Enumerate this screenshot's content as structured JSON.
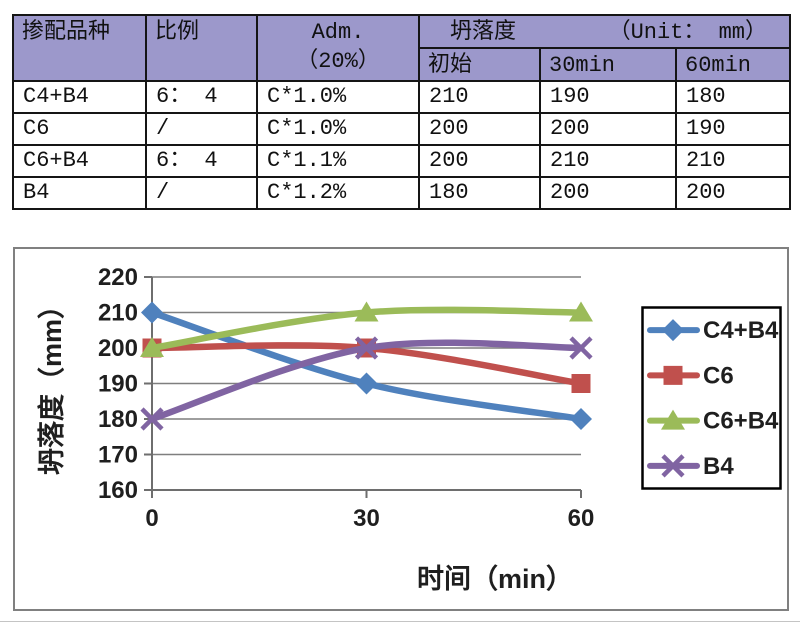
{
  "table": {
    "headers": {
      "col1": "掺配品种",
      "col2": "比例",
      "col3_line1": "Adm.",
      "col3_line2": "（20%）",
      "group": "坍落度",
      "group_unit": "（Unit： mm）",
      "sub": [
        "初始",
        "30min",
        "60min"
      ]
    },
    "rows": [
      [
        "C4+B4",
        "6： 4",
        "C*1.0%",
        "210",
        "190",
        "180"
      ],
      [
        "C6",
        "/",
        "C*1.0%",
        "200",
        "200",
        "190"
      ],
      [
        "C6+B4",
        "6： 4",
        "C*1.1%",
        "200",
        "210",
        "210"
      ],
      [
        "B4",
        "/",
        "C*1.2%",
        "180",
        "200",
        "200"
      ]
    ]
  },
  "chart_data": {
    "type": "line",
    "x": [
      0,
      30,
      60
    ],
    "x_tick_labels": [
      "0",
      "30",
      "60"
    ],
    "series": [
      {
        "name": "C4+B4",
        "color": "#4F81BD",
        "marker": "diamond",
        "values": [
          210,
          190,
          180
        ]
      },
      {
        "name": "C6",
        "color": "#C0504D",
        "marker": "square",
        "values": [
          200,
          200,
          190
        ]
      },
      {
        "name": "C6+B4",
        "color": "#9BBB59",
        "marker": "triangle",
        "values": [
          200,
          210,
          210
        ]
      },
      {
        "name": "B4",
        "color": "#8064A2",
        "marker": "x",
        "values": [
          180,
          200,
          200
        ]
      }
    ],
    "xlabel": "时间（min）",
    "ylabel": "坍落度（mm）",
    "ylim": [
      160,
      220
    ],
    "ytick_step": 10,
    "smooth": true,
    "grid": true,
    "legend_position": "right",
    "colors": {
      "gridline": "#7f7f7f",
      "axis": "#6e6e6e",
      "frame_border": "#808080",
      "legend_border": "#000000",
      "table_header_bg": "#9c98cb"
    }
  }
}
